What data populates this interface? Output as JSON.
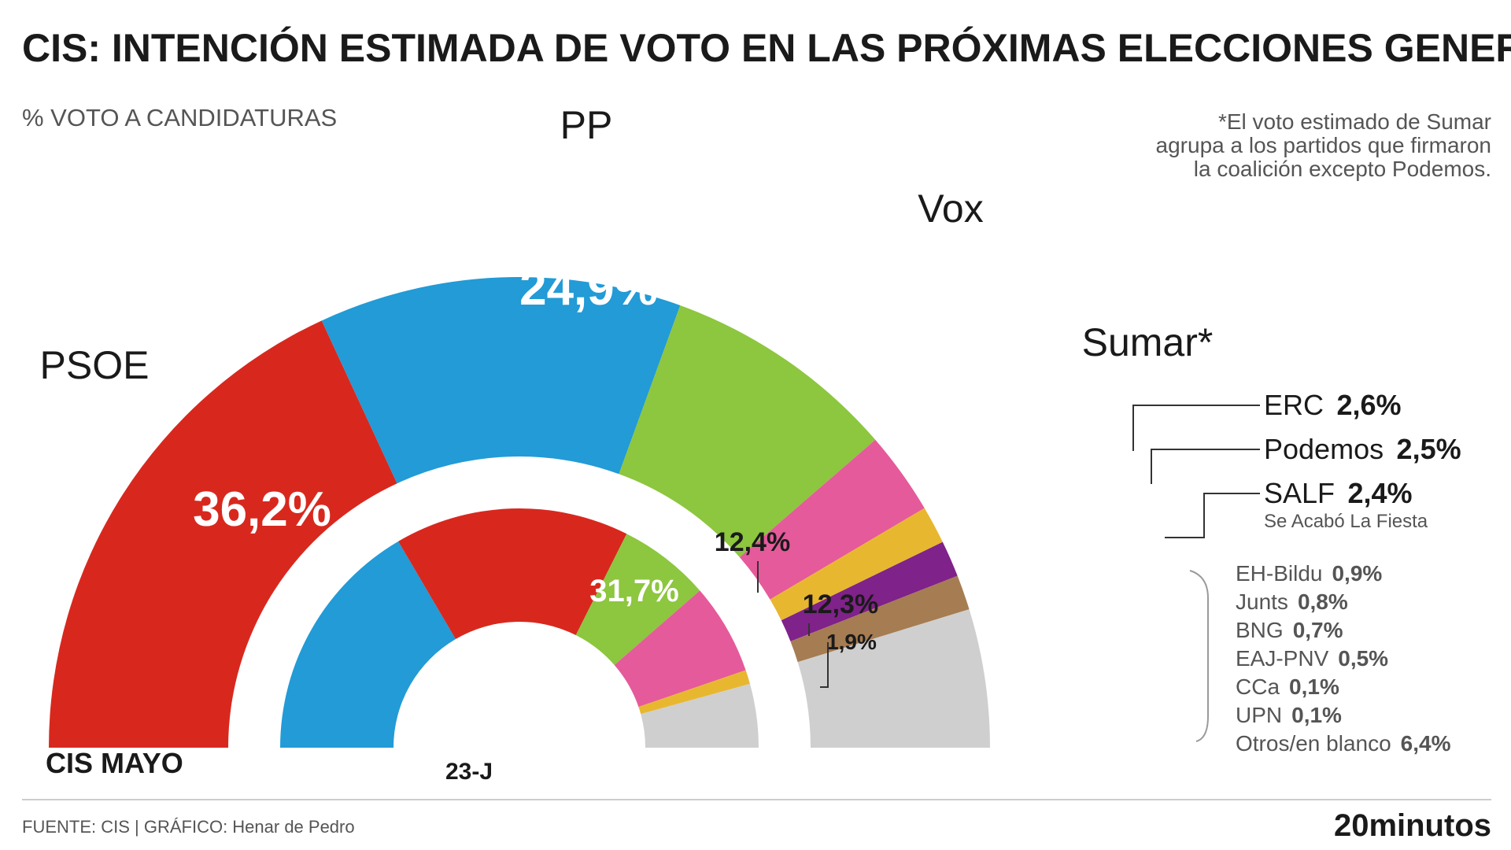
{
  "chart_title": "CIS: INTENCIÓN ESTIMADA DE VOTO EN LAS PRÓXIMAS ELECCIONES GENERALES",
  "subtitle": "% VOTO A CANDIDATURAS",
  "note_lines": [
    "*El voto estimado de Sumar",
    "agrupa a los partidos que firmaron",
    "la coalición excepto Podemos."
  ],
  "colors": {
    "PSOE": "#d8281e",
    "PP": "#229bd6",
    "Vox": "#8dc63f",
    "Sumar": "#e55a9a",
    "ERC": "#e8b730",
    "Podemos": "#7f2289",
    "SALF": "#a67c52",
    "Otros": "#cfcfcf"
  },
  "outer_ring": {
    "name": "CIS MAYO",
    "segments": [
      {
        "party": "PSOE",
        "label": "PSOE",
        "value": 36.2,
        "text": "36,2%"
      },
      {
        "party": "PP",
        "label": "PP",
        "value": 24.9,
        "text": "24,9%"
      },
      {
        "party": "Vox",
        "label": "Vox",
        "value": 16.2,
        "text": "16,2%"
      },
      {
        "party": "Sumar",
        "label": "Sumar*",
        "value": 5.7,
        "text": "5,7%"
      },
      {
        "party": "ERC",
        "label": "ERC",
        "value": 2.6,
        "text": "2,6%"
      },
      {
        "party": "Podemos",
        "label": "Podemos",
        "value": 2.5,
        "text": "2,5%"
      },
      {
        "party": "SALF",
        "label": "SALF",
        "value": 2.4,
        "text": "2,4%",
        "sublabel": "Se Acabó La Fiesta"
      },
      {
        "party": "Otros",
        "label": "Otros",
        "value": 9.5,
        "text": ""
      }
    ],
    "others_breakdown": [
      {
        "label": "EH-Bildu",
        "text": "0,9%"
      },
      {
        "label": "Junts",
        "text": "0,8%"
      },
      {
        "label": "BNG",
        "text": "0,7%"
      },
      {
        "label": "EAJ-PNV",
        "text": "0,5%"
      },
      {
        "label": "CCa",
        "text": "0,1%"
      },
      {
        "label": "UPN",
        "text": "0,1%"
      },
      {
        "label": "Otros/en blanco",
        "text": "6,4%"
      }
    ]
  },
  "inner_ring": {
    "name": "23-J",
    "segments": [
      {
        "party": "PP",
        "value": 33.1,
        "text": "33,1%"
      },
      {
        "party": "PSOE",
        "value": 31.7,
        "text": "31,7%"
      },
      {
        "party": "Vox",
        "value": 12.4,
        "text": "12,4%"
      },
      {
        "party": "Sumar",
        "value": 12.3,
        "text": "12,3%"
      },
      {
        "party": "ERC",
        "value": 1.9,
        "text": "1,9%"
      },
      {
        "party": "Otros",
        "value": 8.6,
        "text": ""
      }
    ]
  },
  "chart_data": [
    {
      "type": "pie",
      "name": "CIS MAYO",
      "title": "CIS: INTENCIÓN ESTIMADA DE VOTO EN LAS PRÓXIMAS ELECCIONES GENERALES",
      "categories": [
        "PSOE",
        "PP",
        "Vox",
        "Sumar*",
        "ERC",
        "Podemos",
        "SALF",
        "EH-Bildu",
        "Junts",
        "BNG",
        "EAJ-PNV",
        "CCa",
        "UPN",
        "Otros/en blanco"
      ],
      "values": [
        36.2,
        24.9,
        16.2,
        5.7,
        2.6,
        2.5,
        2.4,
        0.9,
        0.8,
        0.7,
        0.5,
        0.1,
        0.1,
        6.4
      ],
      "unit": "%"
    },
    {
      "type": "pie",
      "name": "23-J",
      "categories": [
        "PP",
        "PSOE",
        "Vox",
        "Sumar",
        "ERC"
      ],
      "values": [
        33.1,
        31.7,
        12.4,
        12.3,
        1.9
      ],
      "unit": "%"
    }
  ],
  "footer": {
    "source": "FUENTE: CIS  |  GRÁFICO: Henar de Pedro",
    "brand": "20minutos"
  }
}
